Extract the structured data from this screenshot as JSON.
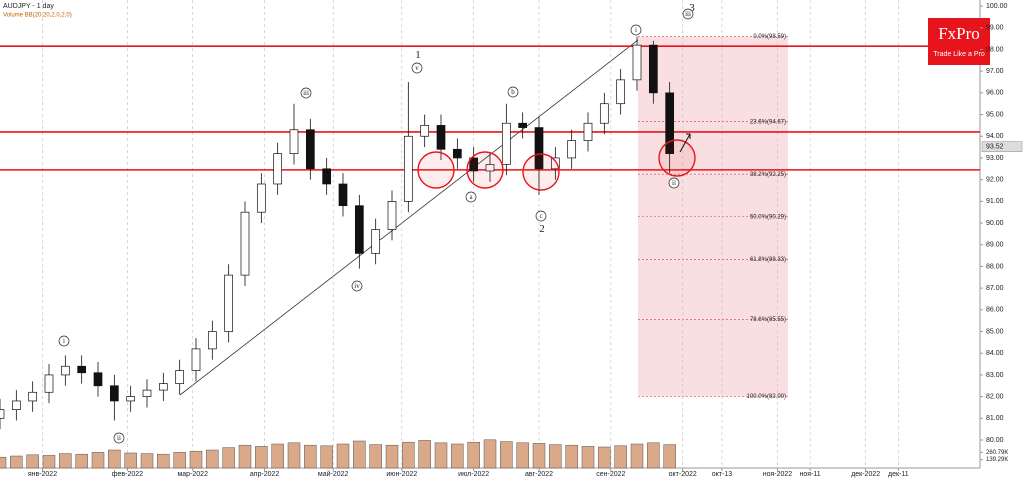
{
  "chart_data": {
    "type": "candlestick",
    "title": "AUDJPY - 1 day",
    "subtitle": "Volume BB(20,20,2.0,2.0)",
    "logo": {
      "brand": "FxPro",
      "tagline": "Trade Like a Pro"
    },
    "x": [
      0,
      5,
      10,
      15,
      20,
      25,
      30,
      35,
      40,
      45,
      50,
      55,
      60,
      65,
      70,
      75,
      80,
      85,
      90,
      95,
      100,
      105,
      110,
      115,
      120,
      125,
      130,
      135,
      140,
      145,
      150,
      155,
      160,
      165,
      170,
      175,
      180,
      185,
      190,
      195,
      200,
      205
    ],
    "open": [
      81.0,
      81.4,
      81.8,
      82.2,
      83.0,
      83.4,
      83.1,
      82.5,
      81.8,
      82.0,
      82.3,
      82.6,
      83.2,
      84.2,
      85.0,
      87.6,
      90.5,
      91.8,
      93.2,
      94.3,
      92.5,
      91.8,
      90.8,
      88.6,
      89.7,
      91.0,
      94.0,
      94.5,
      93.4,
      93.0,
      92.4,
      92.7,
      94.6,
      94.4,
      92.5,
      93.0,
      93.8,
      94.6,
      95.5,
      96.6,
      98.2,
      96.0
    ],
    "high": [
      81.9,
      82.3,
      82.7,
      83.5,
      83.9,
      83.9,
      83.6,
      83.0,
      82.5,
      82.8,
      83.1,
      83.7,
      84.7,
      85.5,
      88.1,
      91.0,
      92.3,
      93.7,
      95.5,
      94.8,
      93.0,
      92.3,
      91.3,
      90.2,
      91.5,
      96.5,
      95.0,
      95.0,
      93.9,
      93.5,
      93.2,
      95.5,
      95.1,
      94.9,
      93.5,
      94.3,
      95.1,
      96.0,
      97.1,
      98.59,
      98.4,
      96.5
    ],
    "low": [
      80.5,
      80.9,
      81.3,
      81.7,
      82.5,
      82.6,
      82.0,
      80.9,
      81.3,
      81.5,
      81.8,
      82.1,
      82.7,
      83.7,
      84.5,
      87.1,
      90.0,
      91.3,
      92.7,
      92.0,
      91.3,
      90.3,
      87.9,
      88.1,
      89.2,
      90.5,
      93.5,
      92.9,
      92.5,
      91.9,
      91.9,
      92.2,
      93.9,
      91.3,
      92.0,
      92.5,
      93.3,
      94.1,
      95.0,
      96.1,
      95.5,
      92.3
    ],
    "close": [
      81.4,
      81.8,
      82.2,
      83.0,
      83.4,
      83.1,
      82.5,
      81.8,
      82.0,
      82.3,
      82.6,
      83.2,
      84.2,
      85.0,
      87.6,
      90.5,
      91.8,
      93.2,
      94.3,
      92.5,
      91.8,
      90.8,
      88.6,
      89.7,
      91.0,
      94.0,
      94.5,
      93.4,
      93.0,
      92.4,
      92.7,
      94.6,
      94.4,
      92.5,
      93.0,
      93.8,
      94.6,
      95.5,
      96.6,
      98.2,
      96.0,
      93.2
    ],
    "volume": [
      180000,
      200000,
      220000,
      210000,
      240000,
      230000,
      260000,
      300000,
      250000,
      240000,
      230000,
      260000,
      280000,
      300000,
      340000,
      380000,
      360000,
      400000,
      420000,
      380000,
      370000,
      400000,
      450000,
      390000,
      380000,
      430000,
      460000,
      420000,
      400000,
      430000,
      470000,
      440000,
      420000,
      410000,
      390000,
      380000,
      360000,
      350000,
      370000,
      400000,
      420000,
      390000
    ],
    "volume_ticks": [
      {
        "value": 260790,
        "label": "260.79K"
      },
      {
        "value": 139290,
        "label": "139.29K"
      }
    ],
    "xlim": [
      0,
      300
    ],
    "xticks": [
      {
        "value": 13,
        "label": "янв-2022"
      },
      {
        "value": 39,
        "label": "фев-2022"
      },
      {
        "value": 59,
        "label": "мар-2022"
      },
      {
        "value": 81,
        "label": "апр-2022"
      },
      {
        "value": 102,
        "label": "май-2022"
      },
      {
        "value": 123,
        "label": "июн-2022"
      },
      {
        "value": 145,
        "label": "июл-2022"
      },
      {
        "value": 165,
        "label": "авг-2022"
      },
      {
        "value": 187,
        "label": "сен-2022"
      },
      {
        "value": 209,
        "label": "окт-2022"
      },
      {
        "value": 221,
        "label": "окт-13"
      },
      {
        "value": 238,
        "label": "ноя-2022"
      },
      {
        "value": 248,
        "label": "ноя-11"
      },
      {
        "value": 265,
        "label": "дек-2022"
      },
      {
        "value": 275,
        "label": "дек-11"
      }
    ],
    "ylim": [
      78.71,
      100.28
    ],
    "yticks": [
      {
        "value": 100,
        "label": "100.00"
      },
      {
        "value": 99,
        "label": "99.00"
      },
      {
        "value": 98,
        "label": "98.00"
      },
      {
        "value": 97,
        "label": "97.00"
      },
      {
        "value": 96,
        "label": "96.00"
      },
      {
        "value": 95,
        "label": "95.00"
      },
      {
        "value": 94,
        "label": "94.00"
      },
      {
        "value": 93,
        "label": "93.00"
      },
      {
        "value": 92,
        "label": "92.00"
      },
      {
        "value": 91,
        "label": "91.00"
      },
      {
        "value": 90,
        "label": "90.00"
      },
      {
        "value": 89,
        "label": "89.00"
      },
      {
        "value": 88,
        "label": "88.00"
      },
      {
        "value": 87,
        "label": "87.00"
      },
      {
        "value": 86,
        "label": "86.00"
      },
      {
        "value": 85,
        "label": "85.00"
      },
      {
        "value": 84,
        "label": "84.00"
      },
      {
        "value": 83,
        "label": "83.00"
      },
      {
        "value": 82,
        "label": "82.00"
      },
      {
        "value": 81,
        "label": "81.00"
      },
      {
        "value": 80,
        "label": "80.00"
      }
    ],
    "last_price": 93.52,
    "levels": [
      98.15,
      94.2,
      92.45
    ],
    "level_color": "#e8141c",
    "fib_levels": [
      {
        "value": 98.59,
        "label": "0.0%(98.59)"
      },
      {
        "value": 94.67,
        "label": "23.6%(94.67)"
      },
      {
        "value": 92.25,
        "label": "38.2%(92.25)"
      },
      {
        "value": 90.29,
        "label": "50.0%(90.29)"
      },
      {
        "value": 88.33,
        "label": "61.8%(88.33)"
      },
      {
        "value": 85.55,
        "label": "78.6%(85.55)"
      },
      {
        "value": 82.0,
        "label": "100.0%(82.00)"
      }
    ],
    "wave_labels": [
      "1",
      "v",
      "iii",
      "iv",
      "i",
      "ii",
      "a",
      "b",
      "c",
      "2",
      "i",
      "3",
      "iii",
      "ii"
    ],
    "grid": true
  }
}
